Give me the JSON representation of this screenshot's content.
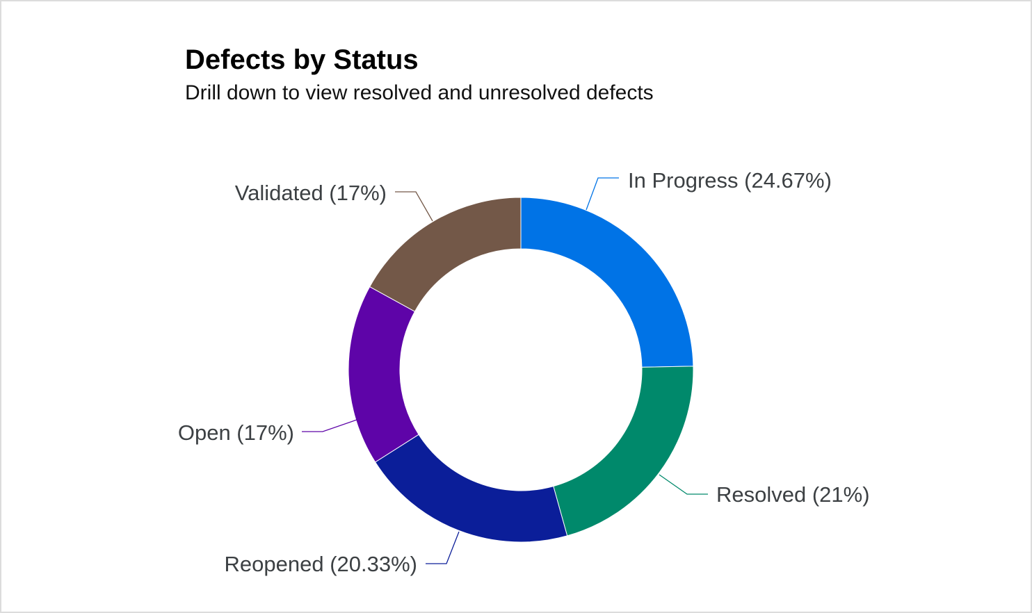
{
  "chart_data": {
    "type": "pie",
    "variant": "donut",
    "title": "Defects by Status",
    "subtitle": "Drill down to view resolved and unresolved defects",
    "categories": [
      "In Progress",
      "Resolved",
      "Reopened",
      "Open",
      "Validated"
    ],
    "values": [
      24.67,
      21,
      20.33,
      17,
      17
    ],
    "labels": [
      "In Progress (24.67%)",
      "Resolved (21%)",
      "Reopened (20.33%)",
      "Open (17%)",
      "Validated (17%)"
    ],
    "colors": [
      "#0073E6",
      "#00896B",
      "#0B1E99",
      "#5E04A8",
      "#735848"
    ],
    "legend": "none",
    "data_labels": "outside-with-leader-lines"
  }
}
